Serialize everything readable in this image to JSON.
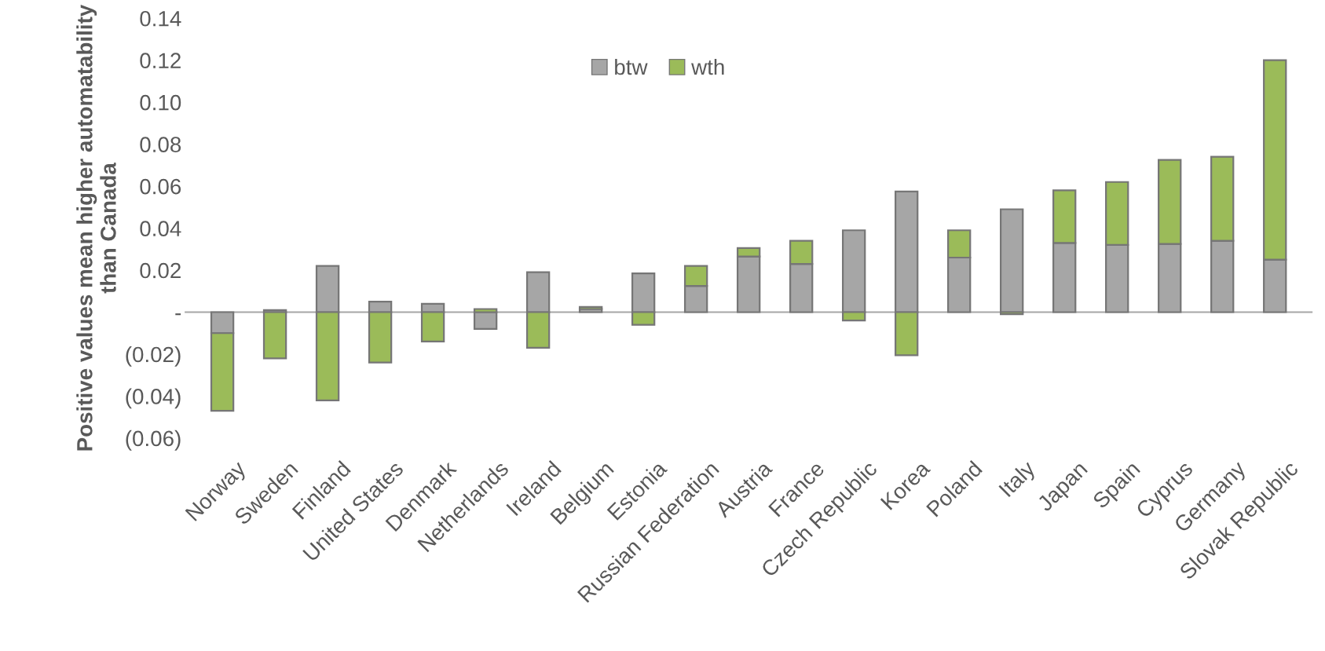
{
  "chart_data": {
    "type": "bar",
    "stacked": true,
    "ylabel": "Positive values mean higher automatability than Canada",
    "categories": [
      "Norway",
      "Sweden",
      "Finland",
      "United States",
      "Denmark",
      "Netherlands",
      "Ireland",
      "Belgium",
      "Estonia",
      "Russian Federation",
      "Austria",
      "France",
      "Czech Republic",
      "Korea",
      "Poland",
      "Italy",
      "Japan",
      "Spain",
      "Cyprus",
      "Germany",
      "Slovak Republic"
    ],
    "series": [
      {
        "name": "btw",
        "color": "#a6a6a6",
        "values": [
          -0.01,
          0.001,
          0.022,
          0.005,
          0.004,
          -0.008,
          0.019,
          0.0015,
          0.0185,
          0.0125,
          0.0265,
          0.023,
          0.039,
          0.0575,
          0.026,
          0.049,
          0.033,
          0.032,
          0.0325,
          0.034,
          0.025
        ]
      },
      {
        "name": "wth",
        "color": "#9bbb59",
        "values": [
          -0.037,
          -0.022,
          -0.042,
          -0.024,
          -0.014,
          0.0015,
          -0.017,
          0.001,
          -0.006,
          0.0095,
          0.004,
          0.011,
          -0.004,
          -0.0205,
          0.013,
          -0.001,
          0.025,
          0.03,
          0.04,
          0.04,
          0.095
        ]
      }
    ],
    "ylim": [
      -0.06,
      0.14
    ],
    "yticks": [
      {
        "value": -0.06,
        "label": "(0.06)"
      },
      {
        "value": -0.04,
        "label": "(0.04)"
      },
      {
        "value": -0.02,
        "label": "(0.02)"
      },
      {
        "value": 0,
        "label": "-"
      },
      {
        "value": 0.02,
        "label": "0.02"
      },
      {
        "value": 0.04,
        "label": "0.04"
      },
      {
        "value": 0.06,
        "label": "0.06"
      },
      {
        "value": 0.08,
        "label": "0.08"
      },
      {
        "value": 0.1,
        "label": "0.10"
      },
      {
        "value": 0.12,
        "label": "0.12"
      },
      {
        "value": 0.14,
        "label": "0.14"
      }
    ],
    "legend": "top"
  }
}
